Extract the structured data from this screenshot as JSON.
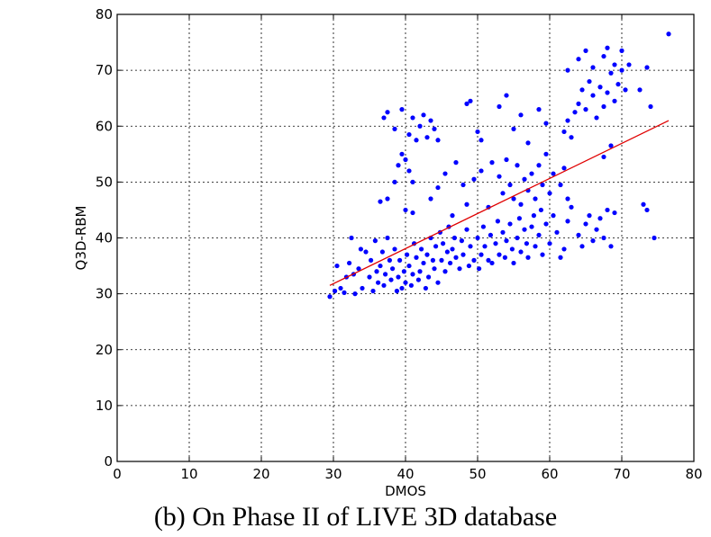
{
  "caption": "(b) On Phase II of LIVE 3D database",
  "colors": {
    "points": "#0000ff",
    "fit_line": "#e00000",
    "grid": "#000000",
    "axes": "#000000"
  },
  "chart_data": {
    "type": "scatter",
    "xlabel": "DMOS",
    "ylabel": "Q3D-RBM",
    "xlim": [
      0,
      80
    ],
    "ylim": [
      0,
      80
    ],
    "xticks": [
      0,
      10,
      20,
      30,
      40,
      50,
      60,
      70,
      80
    ],
    "yticks": [
      0,
      10,
      20,
      30,
      40,
      50,
      60,
      70,
      80
    ],
    "grid": true,
    "series": [
      {
        "kind": "points",
        "points": [
          [
            29.5,
            29.5
          ],
          [
            30.2,
            30.5
          ],
          [
            30.5,
            35.0
          ],
          [
            31.0,
            31.0
          ],
          [
            31.5,
            30.2
          ],
          [
            31.8,
            33.0
          ],
          [
            32.2,
            35.5
          ],
          [
            32.5,
            40.0
          ],
          [
            32.8,
            33.5
          ],
          [
            33.0,
            30.0
          ],
          [
            33.5,
            34.5
          ],
          [
            33.8,
            38.0
          ],
          [
            34.0,
            31.0
          ],
          [
            34.5,
            37.5
          ],
          [
            35.0,
            33.0
          ],
          [
            35.2,
            36.0
          ],
          [
            35.5,
            30.5
          ],
          [
            35.8,
            39.5
          ],
          [
            36.0,
            34.0
          ],
          [
            36.2,
            32.0
          ],
          [
            36.5,
            35.0
          ],
          [
            36.8,
            37.5
          ],
          [
            37.0,
            31.5
          ],
          [
            37.2,
            33.5
          ],
          [
            37.5,
            40.0
          ],
          [
            37.8,
            36.0
          ],
          [
            38.0,
            32.5
          ],
          [
            38.2,
            34.5
          ],
          [
            38.5,
            38.0
          ],
          [
            38.8,
            30.5
          ],
          [
            39.0,
            33.0
          ],
          [
            39.2,
            36.0
          ],
          [
            39.5,
            31.0
          ],
          [
            39.8,
            34.0
          ],
          [
            40.0,
            32.0
          ],
          [
            40.2,
            37.0
          ],
          [
            40.5,
            35.0
          ],
          [
            40.8,
            31.5
          ],
          [
            41.0,
            33.5
          ],
          [
            41.2,
            39.0
          ],
          [
            41.5,
            36.5
          ],
          [
            41.8,
            32.5
          ],
          [
            42.0,
            34.0
          ],
          [
            42.2,
            38.0
          ],
          [
            42.5,
            35.5
          ],
          [
            42.8,
            31.0
          ],
          [
            43.0,
            37.0
          ],
          [
            43.2,
            33.0
          ],
          [
            43.5,
            40.0
          ],
          [
            43.8,
            36.0
          ],
          [
            44.0,
            34.5
          ],
          [
            44.2,
            38.5
          ],
          [
            44.5,
            32.0
          ],
          [
            44.8,
            41.0
          ],
          [
            45.0,
            36.0
          ],
          [
            45.2,
            39.0
          ],
          [
            45.5,
            34.0
          ],
          [
            45.8,
            37.5
          ],
          [
            46.0,
            42.0
          ],
          [
            46.2,
            35.5
          ],
          [
            46.5,
            38.0
          ],
          [
            46.8,
            40.0
          ],
          [
            47.0,
            36.5
          ],
          [
            47.5,
            34.5
          ],
          [
            47.8,
            39.5
          ],
          [
            48.0,
            37.0
          ],
          [
            48.5,
            41.5
          ],
          [
            48.8,
            35.0
          ],
          [
            49.0,
            38.5
          ],
          [
            49.5,
            36.0
          ],
          [
            50.0,
            40.0
          ],
          [
            50.2,
            34.5
          ],
          [
            50.5,
            37.0
          ],
          [
            50.8,
            42.0
          ],
          [
            51.0,
            38.5
          ],
          [
            51.5,
            36.0
          ],
          [
            51.8,
            40.5
          ],
          [
            52.0,
            35.5
          ],
          [
            52.5,
            39.0
          ],
          [
            52.8,
            43.0
          ],
          [
            53.0,
            37.0
          ],
          [
            53.5,
            41.0
          ],
          [
            53.8,
            36.5
          ],
          [
            54.0,
            39.5
          ],
          [
            54.5,
            42.5
          ],
          [
            54.8,
            38.0
          ],
          [
            55.0,
            35.5
          ],
          [
            55.5,
            40.0
          ],
          [
            55.8,
            43.5
          ],
          [
            56.0,
            37.5
          ],
          [
            56.5,
            41.5
          ],
          [
            56.8,
            39.0
          ],
          [
            57.0,
            36.5
          ],
          [
            57.5,
            42.0
          ],
          [
            57.8,
            44.0
          ],
          [
            58.0,
            38.5
          ],
          [
            58.5,
            40.5
          ],
          [
            58.8,
            45.0
          ],
          [
            59.0,
            37.0
          ],
          [
            59.5,
            42.5
          ],
          [
            60.0,
            39.0
          ],
          [
            60.5,
            44.0
          ],
          [
            61.0,
            41.0
          ],
          [
            61.5,
            36.5
          ],
          [
            62.0,
            38.0
          ],
          [
            62.5,
            43.0
          ],
          [
            63.0,
            45.5
          ],
          [
            64.0,
            40.5
          ],
          [
            64.5,
            38.5
          ],
          [
            65.0,
            42.5
          ],
          [
            65.5,
            44.0
          ],
          [
            66.0,
            39.5
          ],
          [
            66.5,
            41.5
          ],
          [
            67.0,
            43.5
          ],
          [
            67.5,
            40.0
          ],
          [
            68.0,
            45.0
          ],
          [
            68.5,
            38.5
          ],
          [
            69.0,
            44.5
          ],
          [
            73.0,
            46.0
          ],
          [
            73.5,
            45.0
          ],
          [
            74.5,
            40.0
          ],
          [
            36.5,
            46.5
          ],
          [
            37.5,
            47.0
          ],
          [
            38.5,
            50.0
          ],
          [
            39.0,
            53.0
          ],
          [
            39.5,
            55.0
          ],
          [
            40.0,
            54.0
          ],
          [
            40.5,
            52.0
          ],
          [
            41.0,
            50.0
          ],
          [
            40.0,
            45.0
          ],
          [
            41.0,
            44.5
          ],
          [
            43.5,
            47.0
          ],
          [
            44.5,
            49.0
          ],
          [
            45.5,
            51.5
          ],
          [
            46.5,
            44.0
          ],
          [
            47.0,
            53.5
          ],
          [
            48.0,
            49.5
          ],
          [
            48.5,
            46.0
          ],
          [
            49.5,
            50.5
          ],
          [
            50.5,
            52.0
          ],
          [
            51.5,
            45.5
          ],
          [
            52.0,
            53.5
          ],
          [
            53.0,
            51.0
          ],
          [
            53.5,
            48.0
          ],
          [
            54.0,
            54.0
          ],
          [
            54.5,
            49.5
          ],
          [
            55.0,
            47.0
          ],
          [
            55.5,
            53.0
          ],
          [
            56.0,
            46.0
          ],
          [
            56.5,
            50.5
          ],
          [
            57.0,
            48.5
          ],
          [
            57.5,
            51.5
          ],
          [
            58.0,
            47.0
          ],
          [
            58.5,
            53.0
          ],
          [
            59.0,
            49.5
          ],
          [
            59.5,
            55.0
          ],
          [
            60.0,
            48.0
          ],
          [
            60.5,
            51.5
          ],
          [
            61.5,
            49.5
          ],
          [
            62.0,
            52.5
          ],
          [
            62.5,
            47.0
          ],
          [
            67.5,
            54.5
          ],
          [
            68.5,
            56.5
          ],
          [
            37.0,
            61.5
          ],
          [
            37.5,
            62.5
          ],
          [
            38.5,
            59.5
          ],
          [
            39.5,
            63.0
          ],
          [
            40.5,
            58.5
          ],
          [
            41.0,
            61.5
          ],
          [
            41.5,
            57.5
          ],
          [
            42.0,
            60.0
          ],
          [
            42.5,
            62.0
          ],
          [
            43.0,
            58.0
          ],
          [
            43.5,
            61.0
          ],
          [
            44.0,
            59.5
          ],
          [
            44.5,
            57.5
          ],
          [
            48.5,
            64.0
          ],
          [
            49.0,
            64.5
          ],
          [
            50.0,
            59.0
          ],
          [
            50.5,
            57.5
          ],
          [
            53.0,
            63.5
          ],
          [
            54.0,
            65.5
          ],
          [
            55.0,
            59.5
          ],
          [
            56.0,
            62.0
          ],
          [
            57.0,
            57.0
          ],
          [
            58.5,
            63.0
          ],
          [
            59.5,
            60.5
          ],
          [
            62.0,
            59.0
          ],
          [
            62.5,
            61.0
          ],
          [
            63.0,
            58.0
          ],
          [
            63.5,
            62.5
          ],
          [
            64.0,
            64.0
          ],
          [
            64.5,
            66.5
          ],
          [
            65.0,
            63.0
          ],
          [
            65.5,
            68.0
          ],
          [
            66.0,
            65.5
          ],
          [
            66.5,
            61.5
          ],
          [
            67.0,
            67.0
          ],
          [
            67.5,
            63.5
          ],
          [
            68.0,
            66.0
          ],
          [
            68.5,
            69.5
          ],
          [
            69.0,
            64.5
          ],
          [
            69.5,
            67.5
          ],
          [
            70.0,
            70.0
          ],
          [
            70.5,
            66.5
          ],
          [
            71.0,
            71.0
          ],
          [
            72.5,
            66.5
          ],
          [
            73.5,
            70.5
          ],
          [
            74.0,
            63.5
          ],
          [
            62.5,
            70.0
          ],
          [
            64.0,
            72.0
          ],
          [
            65.0,
            73.5
          ],
          [
            66.0,
            70.5
          ],
          [
            67.5,
            72.5
          ],
          [
            68.0,
            74.0
          ],
          [
            69.0,
            71.0
          ],
          [
            70.0,
            73.5
          ],
          [
            76.5,
            76.5
          ]
        ]
      },
      {
        "kind": "fit_line",
        "points": [
          [
            29.5,
            31.5
          ],
          [
            76.5,
            61.0
          ]
        ]
      }
    ]
  }
}
